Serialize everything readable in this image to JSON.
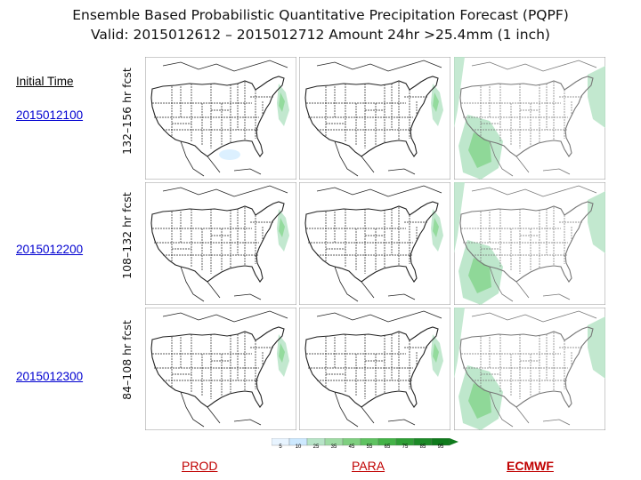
{
  "title": {
    "line1": "Ensemble Based Probabilistic Quantitative Precipitation Forecast (PQPF)",
    "line2": "Valid: 2015012612 – 2015012712 Amount 24hr >25.4mm (1 inch)"
  },
  "initial_time_label": "Initial Time",
  "rows": [
    {
      "date": "2015012100",
      "forecast_label": "132–156 hr fcst"
    },
    {
      "date": "2015012200",
      "forecast_label": "108–132 hr fcst"
    },
    {
      "date": "2015012300",
      "forecast_label": "84–108 hr fcst"
    }
  ],
  "columns": [
    {
      "label": "PROD"
    },
    {
      "label": "PARA"
    },
    {
      "label": "ECMWF"
    }
  ],
  "colorbar": {
    "ticks": [
      "5",
      "10",
      "25",
      "35",
      "45",
      "55",
      "65",
      "75",
      "85",
      "95"
    ],
    "colors": [
      "#e8f4ff",
      "#cde9ff",
      "#b7e4c7",
      "#9edba4",
      "#7fcf80",
      "#5fc261",
      "#44b347",
      "#2e9e35",
      "#1c8a27",
      "#0f7a1c"
    ]
  },
  "colors": {
    "link": "#0000d0",
    "footer_link": "#c00000",
    "precip_light": "#b7e4c7",
    "precip_dark": "#6fcf75"
  }
}
